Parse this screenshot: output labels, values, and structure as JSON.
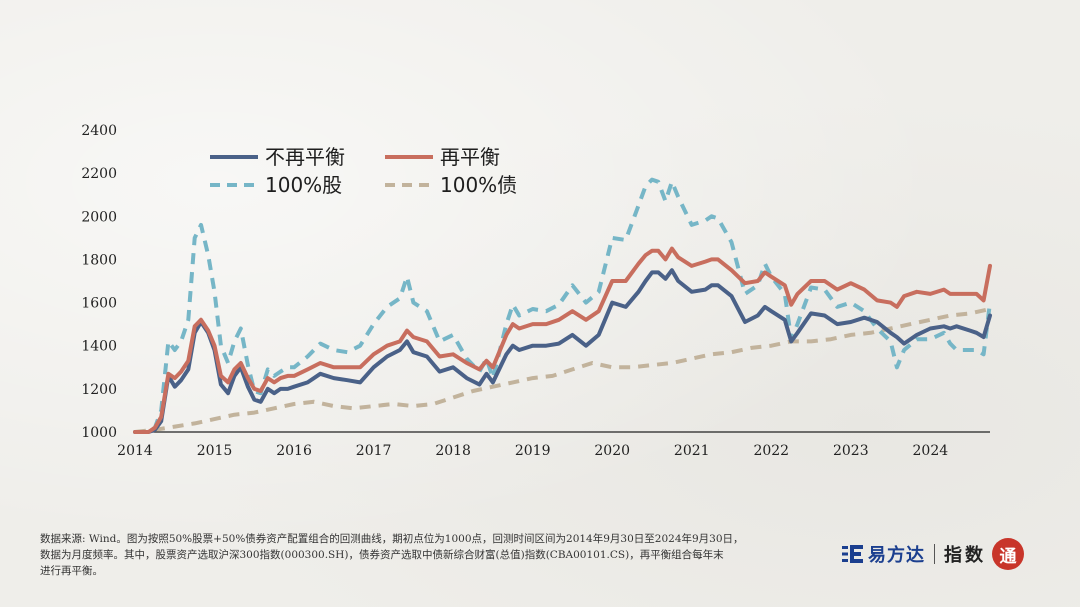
{
  "chart_data": {
    "type": "line",
    "title": "",
    "xlabel": "",
    "ylabel": "",
    "ylim": [
      1000,
      2400
    ],
    "yticks": [
      1000,
      1200,
      1400,
      1600,
      1800,
      2000,
      2200,
      2400
    ],
    "xlim": [
      2014.0,
      2024.75
    ],
    "xticks": [
      2014,
      2015,
      2016,
      2017,
      2018,
      2019,
      2020,
      2021,
      2022,
      2023,
      2024
    ],
    "grid": false,
    "legend": "top-left",
    "series": [
      {
        "name": "不再平衡",
        "color": "#4a6188",
        "style": "solid",
        "x": [
          2014.0,
          2014.17,
          2014.25,
          2014.33,
          2014.42,
          2014.5,
          2014.58,
          2014.67,
          2014.75,
          2014.83,
          2014.92,
          2015.0,
          2015.08,
          2015.17,
          2015.25,
          2015.33,
          2015.42,
          2015.5,
          2015.58,
          2015.67,
          2015.75,
          2015.83,
          2015.92,
          2016.0,
          2016.17,
          2016.33,
          2016.5,
          2016.67,
          2016.83,
          2017.0,
          2017.17,
          2017.33,
          2017.42,
          2017.5,
          2017.67,
          2017.83,
          2018.0,
          2018.17,
          2018.33,
          2018.42,
          2018.5,
          2018.67,
          2018.75,
          2018.83,
          2019.0,
          2019.17,
          2019.33,
          2019.5,
          2019.67,
          2019.83,
          2020.0,
          2020.17,
          2020.33,
          2020.42,
          2020.5,
          2020.58,
          2020.67,
          2020.75,
          2020.83,
          2021.0,
          2021.17,
          2021.25,
          2021.33,
          2021.5,
          2021.67,
          2021.83,
          2021.92,
          2022.0,
          2022.17,
          2022.25,
          2022.33,
          2022.5,
          2022.67,
          2022.83,
          2023.0,
          2023.17,
          2023.33,
          2023.5,
          2023.58,
          2023.67,
          2023.83,
          2024.0,
          2024.17,
          2024.25,
          2024.33,
          2024.5,
          2024.58,
          2024.67,
          2024.75
        ],
        "y": [
          1000,
          1000,
          1010,
          1050,
          1260,
          1210,
          1240,
          1290,
          1460,
          1510,
          1460,
          1380,
          1220,
          1180,
          1260,
          1300,
          1210,
          1150,
          1140,
          1200,
          1180,
          1200,
          1200,
          1210,
          1230,
          1270,
          1250,
          1240,
          1230,
          1300,
          1350,
          1380,
          1420,
          1370,
          1350,
          1280,
          1300,
          1250,
          1220,
          1270,
          1230,
          1360,
          1400,
          1380,
          1400,
          1400,
          1410,
          1450,
          1400,
          1450,
          1600,
          1580,
          1650,
          1700,
          1740,
          1740,
          1710,
          1750,
          1700,
          1650,
          1660,
          1680,
          1680,
          1630,
          1510,
          1540,
          1580,
          1560,
          1520,
          1420,
          1460,
          1550,
          1540,
          1500,
          1510,
          1530,
          1510,
          1460,
          1440,
          1410,
          1450,
          1480,
          1490,
          1480,
          1490,
          1470,
          1460,
          1440,
          1540
        ]
      },
      {
        "name": "再平衡",
        "color": "#c86e5e",
        "style": "solid",
        "x": [
          2014.0,
          2014.17,
          2014.25,
          2014.33,
          2014.42,
          2014.5,
          2014.58,
          2014.67,
          2014.75,
          2014.83,
          2014.92,
          2015.0,
          2015.08,
          2015.17,
          2015.25,
          2015.33,
          2015.42,
          2015.5,
          2015.58,
          2015.67,
          2015.75,
          2015.83,
          2015.92,
          2016.0,
          2016.17,
          2016.33,
          2016.5,
          2016.67,
          2016.83,
          2017.0,
          2017.17,
          2017.33,
          2017.42,
          2017.5,
          2017.67,
          2017.83,
          2018.0,
          2018.17,
          2018.33,
          2018.42,
          2018.5,
          2018.67,
          2018.75,
          2018.83,
          2019.0,
          2019.17,
          2019.33,
          2019.5,
          2019.67,
          2019.83,
          2020.0,
          2020.17,
          2020.33,
          2020.42,
          2020.5,
          2020.58,
          2020.67,
          2020.75,
          2020.83,
          2021.0,
          2021.17,
          2021.25,
          2021.33,
          2021.5,
          2021.67,
          2021.83,
          2021.92,
          2022.0,
          2022.17,
          2022.25,
          2022.33,
          2022.5,
          2022.67,
          2022.83,
          2023.0,
          2023.17,
          2023.33,
          2023.5,
          2023.58,
          2023.67,
          2023.83,
          2024.0,
          2024.17,
          2024.25,
          2024.33,
          2024.5,
          2024.58,
          2024.67,
          2024.75
        ],
        "y": [
          1000,
          1000,
          1020,
          1070,
          1270,
          1250,
          1280,
          1330,
          1490,
          1520,
          1470,
          1400,
          1260,
          1230,
          1290,
          1320,
          1250,
          1200,
          1190,
          1250,
          1230,
          1250,
          1260,
          1260,
          1290,
          1320,
          1300,
          1300,
          1300,
          1360,
          1400,
          1420,
          1470,
          1440,
          1420,
          1350,
          1360,
          1320,
          1290,
          1330,
          1300,
          1450,
          1500,
          1480,
          1500,
          1500,
          1520,
          1560,
          1520,
          1560,
          1700,
          1700,
          1780,
          1820,
          1840,
          1840,
          1800,
          1850,
          1810,
          1770,
          1790,
          1800,
          1800,
          1750,
          1690,
          1700,
          1740,
          1720,
          1680,
          1590,
          1640,
          1700,
          1700,
          1660,
          1690,
          1660,
          1610,
          1600,
          1580,
          1630,
          1650,
          1640,
          1660,
          1640,
          1640,
          1640,
          1640,
          1610,
          1770
        ]
      },
      {
        "name": "100%股",
        "color": "#76b6c7",
        "style": "dashed",
        "x": [
          2014.0,
          2014.17,
          2014.25,
          2014.33,
          2014.42,
          2014.5,
          2014.58,
          2014.67,
          2014.75,
          2014.83,
          2014.92,
          2015.0,
          2015.08,
          2015.17,
          2015.25,
          2015.33,
          2015.42,
          2015.5,
          2015.58,
          2015.67,
          2015.75,
          2015.83,
          2015.92,
          2016.0,
          2016.17,
          2016.33,
          2016.5,
          2016.67,
          2016.83,
          2017.0,
          2017.17,
          2017.33,
          2017.42,
          2017.5,
          2017.67,
          2017.83,
          2018.0,
          2018.17,
          2018.33,
          2018.42,
          2018.5,
          2018.67,
          2018.75,
          2018.83,
          2019.0,
          2019.17,
          2019.33,
          2019.5,
          2019.67,
          2019.83,
          2020.0,
          2020.17,
          2020.33,
          2020.42,
          2020.5,
          2020.58,
          2020.67,
          2020.75,
          2020.83,
          2021.0,
          2021.17,
          2021.25,
          2021.33,
          2021.5,
          2021.67,
          2021.83,
          2021.92,
          2022.0,
          2022.17,
          2022.25,
          2022.33,
          2022.5,
          2022.67,
          2022.83,
          2023.0,
          2023.17,
          2023.33,
          2023.5,
          2023.58,
          2023.67,
          2023.83,
          2024.0,
          2024.17,
          2024.25,
          2024.33,
          2024.5,
          2024.58,
          2024.67,
          2024.75
        ],
        "y": [
          1000,
          1000,
          1020,
          1100,
          1420,
          1380,
          1420,
          1520,
          1900,
          1960,
          1820,
          1650,
          1400,
          1320,
          1420,
          1480,
          1310,
          1190,
          1180,
          1290,
          1260,
          1280,
          1300,
          1300,
          1350,
          1410,
          1380,
          1370,
          1400,
          1500,
          1580,
          1620,
          1720,
          1600,
          1560,
          1420,
          1450,
          1340,
          1280,
          1340,
          1250,
          1500,
          1590,
          1540,
          1570,
          1560,
          1590,
          1680,
          1600,
          1650,
          1900,
          1890,
          2050,
          2140,
          2170,
          2160,
          2070,
          2160,
          2090,
          1960,
          1980,
          2000,
          1990,
          1880,
          1640,
          1680,
          1780,
          1720,
          1640,
          1430,
          1500,
          1670,
          1660,
          1580,
          1600,
          1560,
          1480,
          1420,
          1300,
          1380,
          1430,
          1430,
          1460,
          1410,
          1380,
          1380,
          1380,
          1360,
          1600
        ]
      },
      {
        "name": "100%债",
        "color": "#c2b39c",
        "style": "dashed",
        "x": [
          2014.0,
          2014.25,
          2014.5,
          2014.75,
          2015.0,
          2015.25,
          2015.5,
          2015.75,
          2016.0,
          2016.25,
          2016.5,
          2016.75,
          2017.0,
          2017.25,
          2017.5,
          2017.75,
          2018.0,
          2018.25,
          2018.5,
          2018.75,
          2019.0,
          2019.25,
          2019.5,
          2019.75,
          2020.0,
          2020.25,
          2020.5,
          2020.75,
          2021.0,
          2021.25,
          2021.5,
          2021.75,
          2022.0,
          2022.25,
          2022.5,
          2022.75,
          2023.0,
          2023.25,
          2023.5,
          2023.75,
          2024.0,
          2024.25,
          2024.5,
          2024.75
        ],
        "y": [
          1000,
          1010,
          1025,
          1040,
          1060,
          1080,
          1090,
          1110,
          1130,
          1140,
          1120,
          1110,
          1120,
          1130,
          1120,
          1130,
          1160,
          1190,
          1210,
          1230,
          1250,
          1260,
          1290,
          1320,
          1300,
          1300,
          1310,
          1320,
          1340,
          1360,
          1370,
          1390,
          1400,
          1420,
          1420,
          1430,
          1450,
          1460,
          1480,
          1500,
          1520,
          1540,
          1550,
          1570
        ]
      }
    ]
  },
  "footnote": {
    "line1": "数据来源: Wind。图为按照50%股票+50%债券资产配置组合的回测曲线，期初点位为1000点，回测时间区间为2014年9月30日至2024年9月30日，",
    "line2": "数据为月度频率。其中，股票资产选取沪深300指数(000300.SH)，债券资产选取中债新综合财富(总值)指数(CBA00101.CS)，再平衡组合每年末",
    "line3": "进行再平衡。"
  },
  "brand": {
    "name": "易方达",
    "sub": "指数",
    "seal": "通",
    "logo_icon": "efund-logo-icon",
    "color": "#1b3f8f"
  }
}
